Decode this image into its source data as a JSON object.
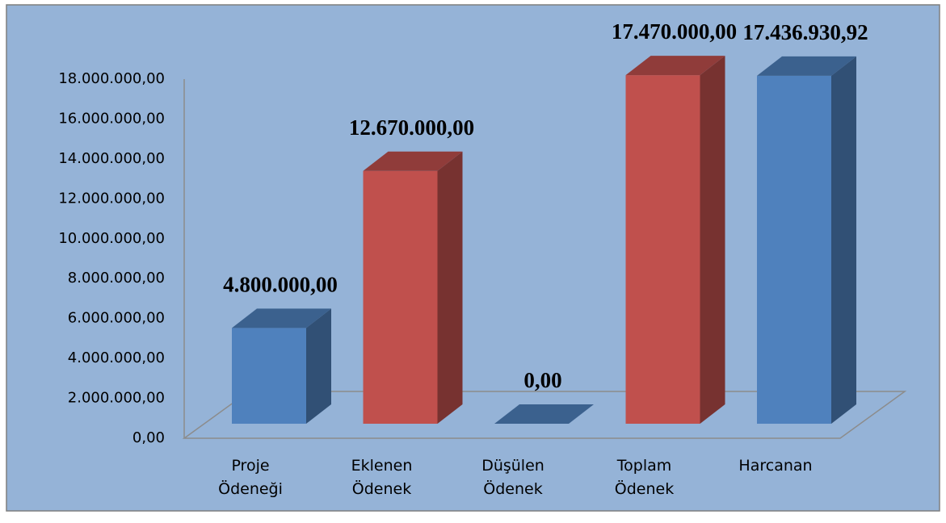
{
  "chart_data": {
    "type": "bar3d",
    "categories": [
      "Proje Ödeneği",
      "Eklenen Ödenek",
      "Düşülen Ödenek",
      "Toplam Ödenek",
      "Harcanan"
    ],
    "values": [
      4800000,
      12670000,
      0,
      17470000,
      17436930.92
    ],
    "value_labels": [
      "4.800.000,00",
      "12.670.000,00",
      "0,00",
      "17.470.000,00",
      "17.436.930,92"
    ],
    "colors": [
      "#4f81bd",
      "#c0504d",
      "#4f81bd",
      "#c0504d",
      "#4f81bd"
    ],
    "ylim": [
      0,
      18000000
    ],
    "yticks": [
      {
        "value": 0,
        "label": "0,00"
      },
      {
        "value": 2000000,
        "label": "2.000.000,00"
      },
      {
        "value": 4000000,
        "label": "4.000.000,00"
      },
      {
        "value": 6000000,
        "label": "6.000.000,00"
      },
      {
        "value": 8000000,
        "label": "8.000.000,00"
      },
      {
        "value": 10000000,
        "label": "10.000.000,00"
      },
      {
        "value": 12000000,
        "label": "12.000.000,00"
      },
      {
        "value": 14000000,
        "label": "14.000.000,00"
      },
      {
        "value": 16000000,
        "label": "16.000.000,00"
      },
      {
        "value": 18000000,
        "label": "18.000.000,00"
      }
    ],
    "grid": false
  }
}
